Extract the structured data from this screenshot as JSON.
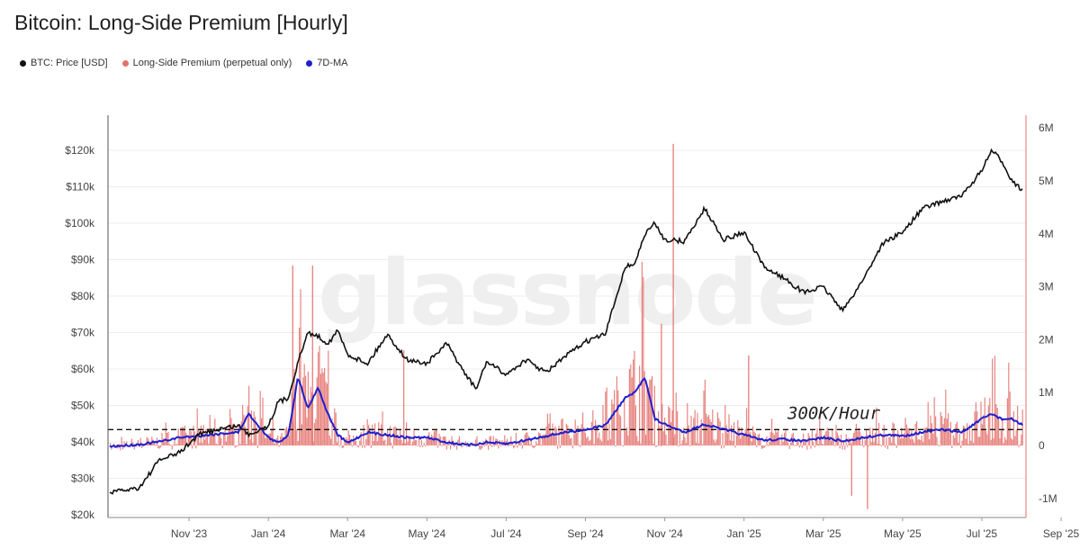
{
  "chart_data": {
    "type": "line",
    "title": "Bitcoin: Long-Side Premium [Hourly]",
    "watermark": "glassnode",
    "legend": {
      "placement": "top-left",
      "entries": [
        {
          "label": "BTC: Price [USD]",
          "color": "#111111"
        },
        {
          "label": "Long-Side Premium (perpetual only)",
          "color": "#e4716c"
        },
        {
          "label": "7D-MA",
          "color": "#1f1fcf"
        }
      ]
    },
    "x_ticks": [
      "Nov '23",
      "Jan '24",
      "Mar '24",
      "May '24",
      "Jul '24",
      "Sep '24",
      "Nov '24",
      "Jan '25",
      "Mar '25",
      "May '25",
      "Jul '25",
      "Sep '25"
    ],
    "y_left": {
      "label": "",
      "range": [
        20000,
        125000
      ],
      "ticks": [
        20000,
        30000,
        40000,
        50000,
        60000,
        70000,
        80000,
        90000,
        100000,
        110000,
        120000
      ],
      "tick_labels": [
        "$20k",
        "$30k",
        "$40k",
        "$50k",
        "$60k",
        "$70k",
        "$80k",
        "$90k",
        "$100k",
        "$110k",
        "$120k"
      ]
    },
    "y_right": {
      "label": "",
      "range": [
        -1300000,
        6200000
      ],
      "ticks": [
        -1000000,
        0,
        1000000,
        2000000,
        3000000,
        4000000,
        5000000,
        6000000
      ],
      "tick_labels": [
        "-1M",
        "0",
        "1M",
        "2M",
        "3M",
        "4M",
        "5M",
        "6M"
      ]
    },
    "grid": true,
    "threshold": {
      "value": 300000,
      "label": "300K/Hour"
    },
    "x": [
      0,
      0.75,
      1.25,
      1.75,
      2.25,
      2.75,
      3.25,
      3.5,
      4,
      4.25,
      4.5,
      4.75,
      5,
      5.25,
      5.5,
      5.75,
      6,
      6.5,
      7,
      7.5,
      8,
      8.5,
      9,
      9.25,
      9.5,
      10,
      10.5,
      11,
      11.5,
      12,
      12.5,
      13,
      13.25,
      13.5,
      13.75,
      14,
      14.5,
      15,
      15.5,
      16,
      16.5,
      17,
      17.5,
      18,
      18.5,
      19,
      19.5,
      20,
      20.5,
      21,
      21.5,
      22,
      22.25,
      22.5,
      22.75,
      23
    ],
    "series": [
      {
        "name": "BTC: Price [USD]",
        "axis": "left",
        "values": [
          26000,
          27500,
          35000,
          37000,
          42000,
          43500,
          44500,
          42000,
          44500,
          51000,
          52000,
          62000,
          70000,
          69000,
          67000,
          70500,
          64000,
          61500,
          69500,
          62500,
          61500,
          67000,
          58000,
          54500,
          62000,
          58500,
          62500,
          59000,
          63500,
          67500,
          69500,
          88000,
          89000,
          97000,
          100000,
          95500,
          95000,
          104000,
          95500,
          97500,
          88000,
          85000,
          81000,
          82500,
          76000,
          84500,
          94500,
          97500,
          104000,
          106000,
          107500,
          114500,
          120000,
          117000,
          112000,
          109000
        ]
      },
      {
        "name": "7D-MA",
        "axis": "right",
        "values": [
          -20000,
          20000,
          70000,
          150000,
          180000,
          220000,
          250000,
          600000,
          150000,
          50000,
          200000,
          1300000,
          700000,
          1100000,
          600000,
          200000,
          50000,
          250000,
          200000,
          150000,
          150000,
          60000,
          10000,
          20000,
          60000,
          30000,
          100000,
          180000,
          250000,
          300000,
          380000,
          900000,
          1000000,
          1300000,
          500000,
          400000,
          250000,
          400000,
          300000,
          200000,
          100000,
          120000,
          80000,
          150000,
          80000,
          150000,
          200000,
          180000,
          250000,
          300000,
          250000,
          500000,
          600000,
          500000,
          500000,
          400000
        ]
      },
      {
        "name": "Long-Side Premium (perpetual only)",
        "axis": "right",
        "style": "bars",
        "peaks": [
          [
            4.6,
            3400000
          ],
          [
            5.1,
            3400000
          ],
          [
            7.4,
            1800000
          ],
          [
            13.9,
            2300000
          ],
          [
            14.2,
            5700000
          ],
          [
            16.1,
            1700000
          ],
          [
            18.7,
            -950000
          ],
          [
            19.1,
            -1200000
          ]
        ]
      }
    ]
  }
}
